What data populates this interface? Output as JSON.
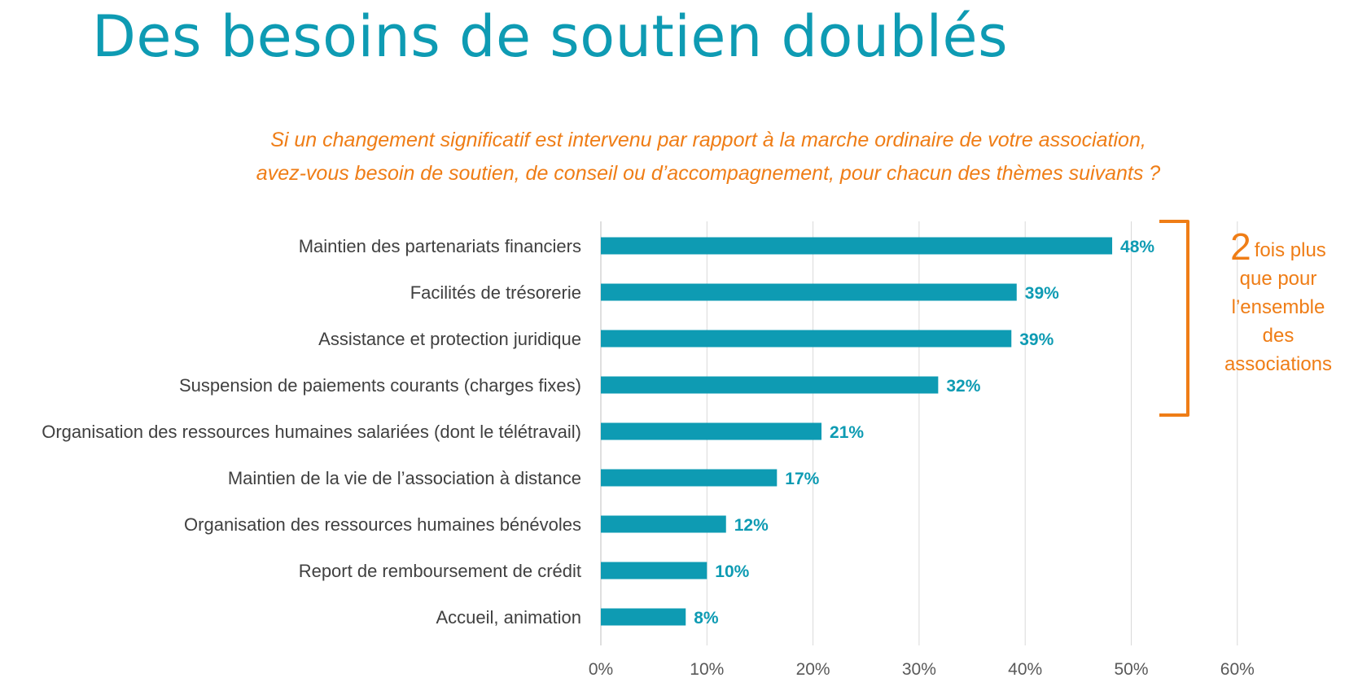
{
  "slide": {
    "title": "Des besoins de soutien doublés",
    "question_line1": "Si un changement significatif est intervenu par rapport à la marche ordinaire de votre association,",
    "question_line2": "avez-vous besoin de soutien, de conseil ou d’accompagnement, pour chacun des thèmes suivants ?"
  },
  "callout": {
    "big": "2",
    "line1": "fois plus",
    "line2": "que pour",
    "line3": "l’ensemble",
    "line4": "des",
    "line5": "associations",
    "color": "#ef7d16"
  },
  "chart_data": {
    "type": "bar",
    "orientation": "horizontal",
    "categories": [
      "Maintien des partenariats financiers",
      "Facilités de trésorerie",
      "Assistance et protection juridique",
      "Suspension de paiements courants (charges fixes)",
      "Organisation des ressources humaines salariées (dont le télétravail)",
      "Maintien de la vie de l’association à distance",
      "Organisation des ressources humaines bénévoles",
      "Report de remboursement de crédit",
      "Accueil, animation"
    ],
    "values": [
      48.2,
      39.2,
      38.7,
      31.8,
      20.8,
      16.6,
      11.8,
      10.0,
      8.0
    ],
    "data_labels": [
      "48%",
      "39%",
      "39%",
      "32%",
      "21%",
      "17%",
      "12%",
      "10%",
      "8%"
    ],
    "xlim": [
      0,
      60
    ],
    "xticks": [
      0,
      10,
      20,
      30,
      40,
      50,
      60
    ],
    "xtick_labels": [
      "0%",
      "10%",
      "20%",
      "30%",
      "40%",
      "50%",
      "60%"
    ],
    "grid": true,
    "bar_color": "#0e9bb3",
    "bracket_covers_first_n": 4,
    "bracket_color": "#ef7d16"
  }
}
